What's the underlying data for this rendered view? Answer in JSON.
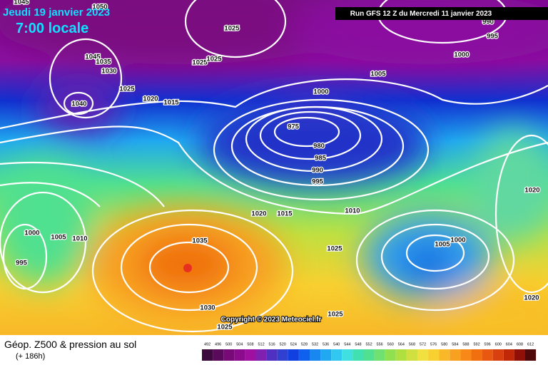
{
  "header": {
    "date": "Jeudi 19 janvier 2023",
    "time": "7:00 locale",
    "run": "Run GFS 12 Z du Mercredi 11 janvier 2023"
  },
  "footer": {
    "title": "Géop. Z500 & pression au sol",
    "lead": "(+ 186h)",
    "copyright": "Copyright © 2023 Meteociel.fr"
  },
  "isobar_labels": [
    "1045",
    "1050",
    "1025",
    "1045",
    "1035",
    "1030",
    "1025",
    "1025",
    "1025",
    "1020",
    "1015",
    "1040",
    "1000",
    "1005",
    "1000",
    "995",
    "990",
    "975",
    "980",
    "985",
    "990",
    "995",
    "1010",
    "1020",
    "1015",
    "1000",
    "1005",
    "1010",
    "995",
    "1035",
    "1030",
    "1025",
    "1025",
    "1025",
    "1000",
    "1005",
    "1020",
    "1020"
  ],
  "legend": {
    "values": [
      492,
      496,
      500,
      504,
      508,
      512,
      516,
      520,
      524,
      528,
      532,
      536,
      540,
      544,
      548,
      552,
      556,
      560,
      564,
      568,
      572,
      576,
      580,
      584,
      588,
      592,
      596,
      600,
      604,
      608,
      612
    ],
    "colors": [
      "#3c0a3c",
      "#5a0a5a",
      "#780a78",
      "#8c0a8c",
      "#a010a0",
      "#8020b0",
      "#5030c0",
      "#3040d0",
      "#1040e0",
      "#1060f0",
      "#1888f0",
      "#20a8f0",
      "#30c8f0",
      "#40e0e0",
      "#40e0b0",
      "#50e090",
      "#70e070",
      "#90e050",
      "#b0e040",
      "#d0e040",
      "#f0e040",
      "#f8d030",
      "#f8b828",
      "#f8a020",
      "#f88818",
      "#f07010",
      "#e85810",
      "#d84010",
      "#c02808",
      "#901008",
      "#500808"
    ]
  }
}
